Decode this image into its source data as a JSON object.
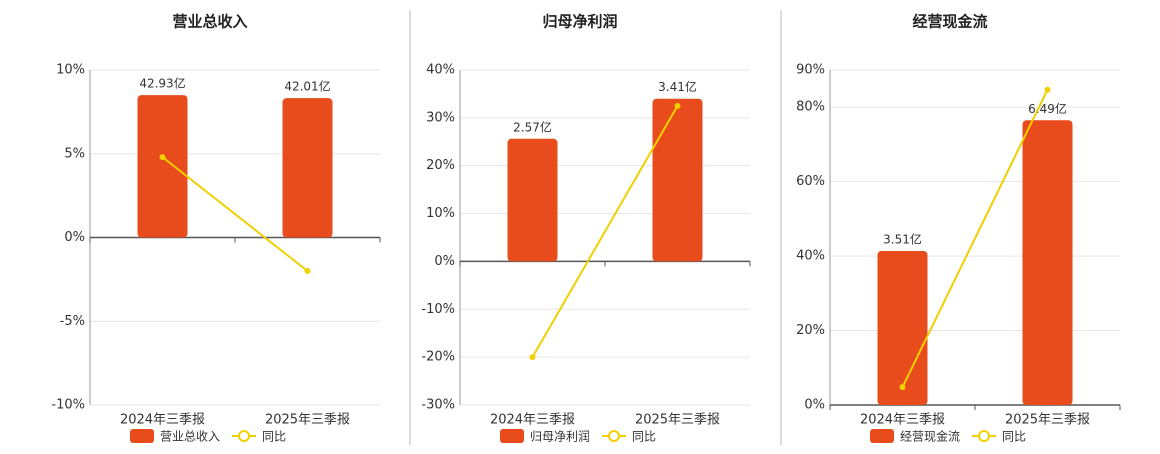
{
  "chart_data": [
    {
      "type": "combo",
      "title": "营业总收入",
      "categories": [
        "2024年三季报",
        "2025年三季报"
      ],
      "series": [
        {
          "name": "营业总收入",
          "kind": "bar",
          "color": "#e84c1c",
          "values": [
            42.93,
            42.01
          ],
          "value_labels": [
            "42.93亿",
            "42.01亿"
          ]
        },
        {
          "name": "同比",
          "kind": "line",
          "color": "#f0d000",
          "values": [
            4.8,
            -2.0
          ]
        }
      ],
      "ylim": [
        -10,
        10
      ],
      "yticks": [
        {
          "value": 10,
          "label": "10%"
        },
        {
          "value": 5,
          "label": "5%"
        },
        {
          "value": 0,
          "label": "0%"
        },
        {
          "value": -5,
          "label": "-5%"
        },
        {
          "value": -10,
          "label": "-10%"
        }
      ]
    },
    {
      "type": "combo",
      "title": "归母净利润",
      "categories": [
        "2024年三季报",
        "2025年三季报"
      ],
      "series": [
        {
          "name": "归母净利润",
          "kind": "bar",
          "color": "#e84c1c",
          "values": [
            2.57,
            3.41
          ],
          "value_labels": [
            "2.57亿",
            "3.41亿"
          ]
        },
        {
          "name": "同比",
          "kind": "line",
          "color": "#f0d000",
          "values": [
            -20,
            32.5
          ]
        }
      ],
      "ylim": [
        -30,
        40
      ],
      "yticks": [
        {
          "value": 40,
          "label": "40%"
        },
        {
          "value": 30,
          "label": "30%"
        },
        {
          "value": 20,
          "label": "20%"
        },
        {
          "value": 10,
          "label": "10%"
        },
        {
          "value": 0,
          "label": "0%"
        },
        {
          "value": -10,
          "label": "-10%"
        },
        {
          "value": -20,
          "label": "-20%"
        },
        {
          "value": -30,
          "label": "-30%"
        }
      ]
    },
    {
      "type": "combo",
      "title": "经营现金流",
      "categories": [
        "2024年三季报",
        "2025年三季报"
      ],
      "series": [
        {
          "name": "经营现金流",
          "kind": "bar",
          "color": "#e84c1c",
          "values": [
            3.51,
            6.49
          ],
          "value_labels": [
            "3.51亿",
            "6.49亿"
          ]
        },
        {
          "name": "同比",
          "kind": "line",
          "color": "#f0d000",
          "values": [
            4.8,
            84.7
          ]
        }
      ],
      "ylim": [
        0,
        90
      ],
      "yticks": [
        {
          "value": 90,
          "label": "90%"
        },
        {
          "value": 80,
          "label": "80%"
        },
        {
          "value": 60,
          "label": "60%"
        },
        {
          "value": 40,
          "label": "40%"
        },
        {
          "value": 20,
          "label": "20%"
        },
        {
          "value": 0,
          "label": "0%"
        }
      ]
    }
  ]
}
